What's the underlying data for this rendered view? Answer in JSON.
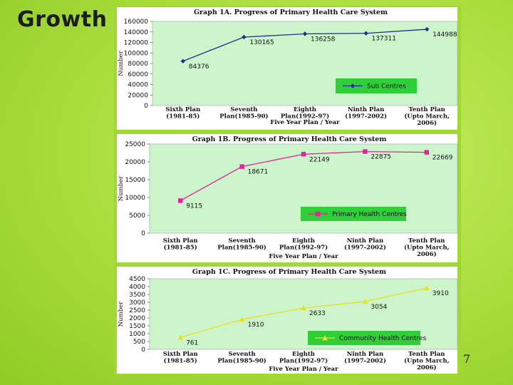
{
  "slide": {
    "title": "Growth",
    "page_number": "7"
  },
  "chart_data": [
    {
      "type": "line",
      "title": "Graph 1A. Progress of Primary Health Care System",
      "xlabel": "Five Year Plan / Year",
      "ylabel": "Number",
      "categories": [
        [
          "Sixth Plan",
          "(1981-85)"
        ],
        [
          "Seventh",
          "Plan(1985-90)"
        ],
        [
          "Eighth",
          "Plan(1992-97)"
        ],
        [
          "Ninth Plan",
          "(1997-2002)"
        ],
        [
          "Tenth Plan",
          "(Upto March,",
          "2006)"
        ]
      ],
      "yticks": [
        0,
        20000,
        40000,
        60000,
        80000,
        100000,
        120000,
        140000,
        160000
      ],
      "ylim": [
        0,
        160000
      ],
      "series": [
        {
          "name": "Sub Centres",
          "values": [
            84376,
            130165,
            136258,
            137311,
            144988
          ],
          "labels": [
            "84376",
            "130165",
            "136258",
            "137311",
            "144988"
          ],
          "color": "#1f2f8f",
          "marker": "diamond"
        }
      ],
      "legend": "bottom-right",
      "grid": false
    },
    {
      "type": "line",
      "title": "Graph 1B. Progress of Primary Health Care System",
      "xlabel": "Five Year Plan / Year",
      "ylabel": "Number",
      "categories": [
        [
          "Sixth Plan",
          "(1981-85)"
        ],
        [
          "Seventh",
          "Plan(1985-90)"
        ],
        [
          "Eighth",
          "Plan(1992-97)"
        ],
        [
          "Ninth Plan",
          "(1997-2002)"
        ],
        [
          "Tenth Plan",
          "(Upto March,",
          "2006)"
        ]
      ],
      "yticks": [
        0,
        5000,
        10000,
        15000,
        20000,
        25000
      ],
      "ylim": [
        0,
        25000
      ],
      "series": [
        {
          "name": "Primary Health Centres",
          "values": [
            9115,
            18671,
            22149,
            22875,
            22669
          ],
          "labels": [
            "9115",
            "18671",
            "22149",
            "22875",
            "22669"
          ],
          "color": "#e6209a",
          "marker": "square"
        }
      ],
      "legend": "bottom-right",
      "grid": false
    },
    {
      "type": "line",
      "title": "Graph 1C. Progress of Primary Health Care System",
      "xlabel": "Five Year Plan / Year",
      "ylabel": "Number",
      "categories": [
        [
          "Sixth Plan",
          "(1981-85)"
        ],
        [
          "Seventh",
          "Plan(1985-90)"
        ],
        [
          "Eighth",
          "Plan(1992-97)"
        ],
        [
          "Ninth Plan",
          "(1997-2002)"
        ],
        [
          "Tenth Plan",
          "(Upto March,",
          "2006)"
        ]
      ],
      "yticks": [
        0,
        500,
        1000,
        1500,
        2000,
        2500,
        3000,
        3500,
        4000,
        4500
      ],
      "ylim": [
        0,
        4500
      ],
      "series": [
        {
          "name": "Community Health Centres",
          "values": [
            761,
            1910,
            2633,
            3054,
            3910
          ],
          "labels": [
            "761",
            "1910",
            "2633",
            "3054",
            "3910"
          ],
          "color": "#e8e020",
          "marker": "triangle"
        }
      ],
      "legend": "bottom-right",
      "grid": false
    }
  ]
}
